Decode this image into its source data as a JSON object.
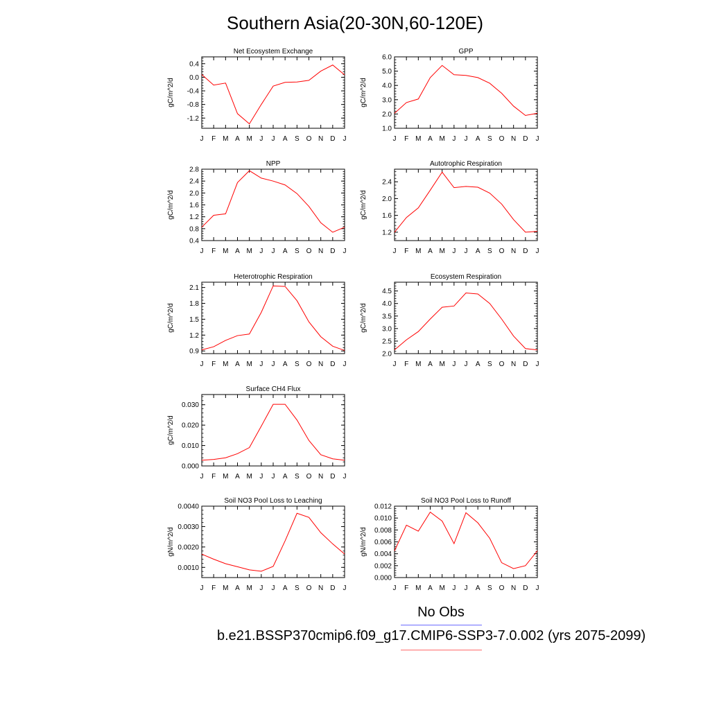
{
  "title": "Southern Asia(20-30N,60-120E)",
  "legend": {
    "no_obs": "No Obs",
    "case": "b.e21.BSSP370cmip6.f09_g17.CMIP6-SSP3-7.0.002 (yrs 2075-2099)",
    "obs_color": "#6a6aff",
    "case_color": "#ff6a6a"
  },
  "line_color": "#ff0000",
  "chart_data": [
    {
      "type": "line",
      "title": "Net Ecosystem Exchange",
      "ylabel": "gC/m^2/d",
      "categories": [
        "J",
        "F",
        "M",
        "A",
        "M",
        "J",
        "J",
        "A",
        "S",
        "O",
        "N",
        "D",
        "J"
      ],
      "values": [
        0.08,
        -0.23,
        -0.17,
        -1.07,
        -1.37,
        -0.8,
        -0.26,
        -0.15,
        -0.14,
        -0.09,
        0.18,
        0.36,
        0.07
      ],
      "ylim": [
        -1.5,
        0.6
      ],
      "yticks": [
        -1.2,
        -0.8,
        -0.4,
        0.0,
        0.4
      ],
      "yticklabels": [
        "-1.2",
        "-0.8",
        "-0.4",
        "0.0",
        "0.4"
      ]
    },
    {
      "type": "line",
      "title": "GPP",
      "ylabel": "gC/m^2/d",
      "categories": [
        "J",
        "F",
        "M",
        "A",
        "M",
        "J",
        "J",
        "A",
        "S",
        "O",
        "N",
        "D",
        "J"
      ],
      "values": [
        2.05,
        2.8,
        3.05,
        4.55,
        5.4,
        4.75,
        4.7,
        4.55,
        4.15,
        3.45,
        2.55,
        1.9,
        2.05
      ],
      "ylim": [
        1.0,
        6.0
      ],
      "yticks": [
        1.0,
        2.0,
        3.0,
        4.0,
        5.0,
        6.0
      ],
      "yticklabels": [
        "1.0",
        "2.0",
        "3.0",
        "4.0",
        "5.0",
        "6.0"
      ]
    },
    {
      "type": "line",
      "title": "NPP",
      "ylabel": "gC/m^2/d",
      "categories": [
        "J",
        "F",
        "M",
        "A",
        "M",
        "J",
        "J",
        "A",
        "S",
        "O",
        "N",
        "D",
        "J"
      ],
      "values": [
        0.85,
        1.25,
        1.3,
        2.35,
        2.75,
        2.5,
        2.4,
        2.27,
        1.98,
        1.55,
        1.0,
        0.68,
        0.85
      ],
      "ylim": [
        0.4,
        2.8
      ],
      "yticks": [
        0.4,
        0.8,
        1.2,
        1.6,
        2.0,
        2.4,
        2.8
      ],
      "yticklabels": [
        "0.4",
        "0.8",
        "1.2",
        "1.6",
        "2.0",
        "2.4",
        "2.8"
      ]
    },
    {
      "type": "line",
      "title": "Autotrophic Respiration",
      "ylabel": "gC/m^2/d",
      "categories": [
        "J",
        "F",
        "M",
        "A",
        "M",
        "J",
        "J",
        "A",
        "S",
        "O",
        "N",
        "D",
        "J"
      ],
      "values": [
        1.2,
        1.55,
        1.78,
        2.2,
        2.63,
        2.26,
        2.29,
        2.27,
        2.13,
        1.87,
        1.5,
        1.2,
        1.22
      ],
      "ylim": [
        1.0,
        2.7
      ],
      "yticks": [
        1.2,
        1.6,
        2.0,
        2.4
      ],
      "yticklabels": [
        "1.2",
        "1.6",
        "2.0",
        "2.4"
      ]
    },
    {
      "type": "line",
      "title": "Heterotrophic Respiration",
      "ylabel": "gC/m^2/d",
      "categories": [
        "J",
        "F",
        "M",
        "A",
        "M",
        "J",
        "J",
        "A",
        "S",
        "O",
        "N",
        "D",
        "J"
      ],
      "values": [
        0.92,
        0.98,
        1.1,
        1.19,
        1.22,
        1.63,
        2.13,
        2.12,
        1.85,
        1.45,
        1.17,
        0.99,
        0.91
      ],
      "ylim": [
        0.85,
        2.2
      ],
      "yticks": [
        0.9,
        1.2,
        1.5,
        1.8,
        2.1
      ],
      "yticklabels": [
        "0.9",
        "1.2",
        "1.5",
        "1.8",
        "2.1"
      ]
    },
    {
      "type": "line",
      "title": "Ecosystem Respiration",
      "ylabel": "gC/m^2/d",
      "categories": [
        "J",
        "F",
        "M",
        "A",
        "M",
        "J",
        "J",
        "A",
        "S",
        "O",
        "N",
        "D",
        "J"
      ],
      "values": [
        2.15,
        2.55,
        2.88,
        3.38,
        3.85,
        3.9,
        4.42,
        4.38,
        4.0,
        3.38,
        2.7,
        2.2,
        2.15
      ],
      "ylim": [
        2.0,
        4.85
      ],
      "yticks": [
        2.0,
        2.5,
        3.0,
        3.5,
        4.0,
        4.5
      ],
      "yticklabels": [
        "2.0",
        "2.5",
        "3.0",
        "3.5",
        "4.0",
        "4.5"
      ]
    },
    {
      "type": "line",
      "title": "Surface CH4 Flux",
      "ylabel": "gC/m^2/d",
      "categories": [
        "J",
        "F",
        "M",
        "A",
        "M",
        "J",
        "J",
        "A",
        "S",
        "O",
        "N",
        "D",
        "J"
      ],
      "values": [
        0.0028,
        0.0032,
        0.004,
        0.006,
        0.009,
        0.0195,
        0.0302,
        0.0302,
        0.0225,
        0.0125,
        0.0055,
        0.0035,
        0.0028
      ],
      "ylim": [
        0.0,
        0.035
      ],
      "yticks": [
        0.0,
        0.01,
        0.02,
        0.03
      ],
      "yticklabels": [
        "0.000",
        "0.010",
        "0.020",
        "0.030"
      ]
    },
    {
      "type": "line",
      "title": "Soil NO3 Pool Loss to Leaching",
      "ylabel": "gN/m^2/d",
      "categories": [
        "J",
        "F",
        "M",
        "A",
        "M",
        "J",
        "J",
        "A",
        "S",
        "O",
        "N",
        "D",
        "J"
      ],
      "values": [
        0.00165,
        0.0014,
        0.00118,
        0.00103,
        0.00088,
        0.00081,
        0.00105,
        0.0023,
        0.00365,
        0.00345,
        0.0027,
        0.00215,
        0.00165
      ],
      "ylim": [
        0.0005,
        0.004
      ],
      "yticks": [
        0.001,
        0.002,
        0.003,
        0.004
      ],
      "yticklabels": [
        "0.0010",
        "0.0020",
        "0.0030",
        "0.0040"
      ]
    },
    {
      "type": "line",
      "title": "Soil NO3 Pool Loss to Runoff",
      "ylabel": "gN/m^2/d",
      "categories": [
        "J",
        "F",
        "M",
        "A",
        "M",
        "J",
        "J",
        "A",
        "S",
        "O",
        "N",
        "D",
        "J"
      ],
      "values": [
        0.0045,
        0.0088,
        0.0078,
        0.011,
        0.0095,
        0.0057,
        0.0109,
        0.0092,
        0.0066,
        0.0025,
        0.0015,
        0.002,
        0.0045
      ],
      "ylim": [
        0.0,
        0.012
      ],
      "yticks": [
        0.0,
        0.002,
        0.004,
        0.006,
        0.008,
        0.01,
        0.012
      ],
      "yticklabels": [
        "0.000",
        "0.002",
        "0.004",
        "0.006",
        "0.008",
        "0.010",
        "0.012"
      ]
    }
  ]
}
